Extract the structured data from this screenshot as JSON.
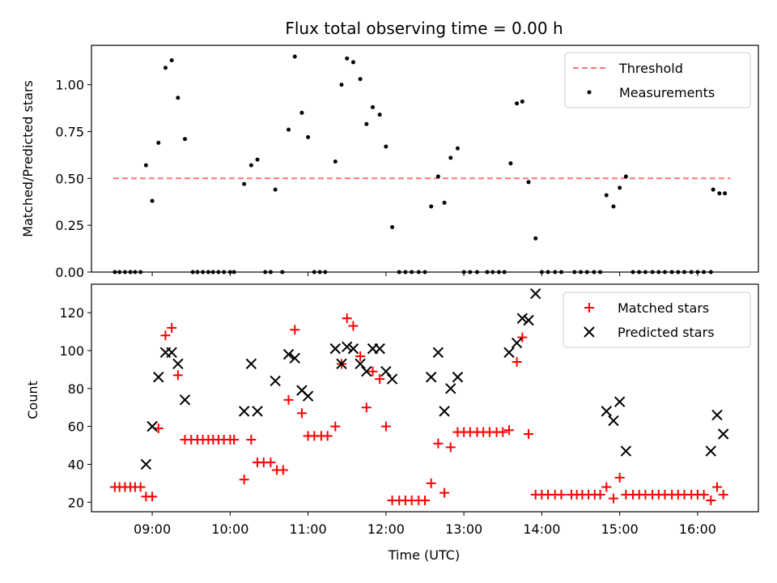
{
  "chart_data": [
    {
      "type": "scatter",
      "title": "Flux total observing time = 0.00 h",
      "xlabel": "",
      "ylabel": "Matched/Predicted stars",
      "x_unit": "hours (UTC)",
      "xlim": [
        8.22,
        16.78
      ],
      "ylim": [
        0,
        1.21
      ],
      "yticks": [
        0.0,
        0.25,
        0.5,
        0.75,
        1.0
      ],
      "ytick_labels": [
        "0.00",
        "0.25",
        "0.50",
        "0.75",
        "1.00"
      ],
      "legend_position": "top-right",
      "legend": [
        "Threshold",
        "Measurements"
      ],
      "threshold": {
        "name": "Threshold",
        "value": 0.5,
        "x_start": 8.5,
        "x_end": 16.42,
        "color": "#ff7373"
      },
      "series": [
        {
          "name": "Measurements",
          "color": "#000000",
          "points": [
            [
              8.52,
              0
            ],
            [
              8.58,
              0
            ],
            [
              8.65,
              0
            ],
            [
              8.72,
              0
            ],
            [
              8.78,
              0
            ],
            [
              8.85,
              0
            ],
            [
              8.92,
              0.57
            ],
            [
              9.0,
              0.38
            ],
            [
              9.08,
              0.69
            ],
            [
              9.17,
              1.09
            ],
            [
              9.25,
              1.13
            ],
            [
              9.33,
              0.93
            ],
            [
              9.42,
              0.71
            ],
            [
              9.52,
              0
            ],
            [
              9.58,
              0
            ],
            [
              9.65,
              0
            ],
            [
              9.72,
              0
            ],
            [
              9.78,
              0
            ],
            [
              9.85,
              0
            ],
            [
              9.92,
              0
            ],
            [
              10.0,
              0
            ],
            [
              10.05,
              0
            ],
            [
              10.18,
              0.47
            ],
            [
              10.27,
              0.57
            ],
            [
              10.35,
              0.6
            ],
            [
              10.45,
              0
            ],
            [
              10.52,
              0
            ],
            [
              10.58,
              0.44
            ],
            [
              10.67,
              0
            ],
            [
              10.75,
              0.76
            ],
            [
              10.83,
              1.15
            ],
            [
              10.92,
              0.85
            ],
            [
              11.0,
              0.72
            ],
            [
              11.08,
              0
            ],
            [
              11.15,
              0
            ],
            [
              11.22,
              0
            ],
            [
              11.35,
              0.59
            ],
            [
              11.43,
              1.0
            ],
            [
              11.5,
              1.14
            ],
            [
              11.58,
              1.12
            ],
            [
              11.67,
              1.03
            ],
            [
              11.75,
              0.79
            ],
            [
              11.83,
              0.88
            ],
            [
              11.92,
              0.84
            ],
            [
              12.0,
              0.67
            ],
            [
              12.08,
              0.24
            ],
            [
              12.17,
              0
            ],
            [
              12.25,
              0
            ],
            [
              12.33,
              0
            ],
            [
              12.42,
              0
            ],
            [
              12.5,
              0
            ],
            [
              12.58,
              0.35
            ],
            [
              12.67,
              0.51
            ],
            [
              12.75,
              0.37
            ],
            [
              12.83,
              0.61
            ],
            [
              12.92,
              0.66
            ],
            [
              13.0,
              0
            ],
            [
              13.08,
              0
            ],
            [
              13.17,
              0
            ],
            [
              13.3,
              0
            ],
            [
              13.37,
              0
            ],
            [
              13.45,
              0
            ],
            [
              13.52,
              0
            ],
            [
              13.6,
              0.58
            ],
            [
              13.68,
              0.9
            ],
            [
              13.75,
              0.91
            ],
            [
              13.83,
              0.48
            ],
            [
              13.92,
              0.18
            ],
            [
              14.0,
              0
            ],
            [
              14.08,
              0
            ],
            [
              14.17,
              0
            ],
            [
              14.25,
              0
            ],
            [
              14.42,
              0
            ],
            [
              14.5,
              0
            ],
            [
              14.58,
              0
            ],
            [
              14.67,
              0
            ],
            [
              14.75,
              0
            ],
            [
              14.83,
              0.41
            ],
            [
              14.92,
              0.35
            ],
            [
              15.0,
              0.45
            ],
            [
              15.08,
              0.51
            ],
            [
              15.17,
              0
            ],
            [
              15.25,
              0
            ],
            [
              15.33,
              0
            ],
            [
              15.42,
              0
            ],
            [
              15.5,
              0
            ],
            [
              15.58,
              0
            ],
            [
              15.67,
              0
            ],
            [
              15.75,
              0
            ],
            [
              15.83,
              0
            ],
            [
              15.92,
              0
            ],
            [
              16.0,
              0
            ],
            [
              16.08,
              0
            ],
            [
              16.17,
              0
            ],
            [
              16.2,
              0.44
            ],
            [
              16.28,
              0.42
            ],
            [
              16.35,
              0.42
            ]
          ]
        }
      ]
    },
    {
      "type": "scatter",
      "title": "",
      "xlabel": "Time (UTC)",
      "ylabel": "Count",
      "x_unit": "hours (UTC)",
      "xlim": [
        8.22,
        16.78
      ],
      "ylim": [
        15,
        135
      ],
      "xticks": [
        9,
        10,
        11,
        12,
        13,
        14,
        15,
        16
      ],
      "xtick_labels": [
        "09:00",
        "10:00",
        "11:00",
        "12:00",
        "13:00",
        "14:00",
        "15:00",
        "16:00"
      ],
      "yticks": [
        20,
        40,
        60,
        80,
        100,
        120
      ],
      "ytick_labels": [
        "20",
        "40",
        "60",
        "80",
        "100",
        "120"
      ],
      "legend_position": "top-right",
      "legend": [
        "Matched stars",
        "Predicted stars"
      ],
      "series": [
        {
          "name": "Matched stars",
          "marker": "+",
          "color": "#ff0000",
          "points": [
            [
              8.52,
              28
            ],
            [
              8.58,
              28
            ],
            [
              8.65,
              28
            ],
            [
              8.72,
              28
            ],
            [
              8.78,
              28
            ],
            [
              8.85,
              28
            ],
            [
              8.92,
              23
            ],
            [
              9.0,
              23
            ],
            [
              9.08,
              59
            ],
            [
              9.17,
              108
            ],
            [
              9.25,
              112
            ],
            [
              9.33,
              87
            ],
            [
              9.42,
              53
            ],
            [
              9.5,
              53
            ],
            [
              9.58,
              53
            ],
            [
              9.65,
              53
            ],
            [
              9.72,
              53
            ],
            [
              9.78,
              53
            ],
            [
              9.85,
              53
            ],
            [
              9.92,
              53
            ],
            [
              10.0,
              53
            ],
            [
              10.05,
              53
            ],
            [
              10.18,
              32
            ],
            [
              10.27,
              53
            ],
            [
              10.35,
              41
            ],
            [
              10.43,
              41
            ],
            [
              10.52,
              41
            ],
            [
              10.6,
              37
            ],
            [
              10.68,
              37
            ],
            [
              10.75,
              74
            ],
            [
              10.83,
              111
            ],
            [
              10.92,
              67
            ],
            [
              11.0,
              55
            ],
            [
              11.08,
              55
            ],
            [
              11.17,
              55
            ],
            [
              11.25,
              55
            ],
            [
              11.35,
              60
            ],
            [
              11.43,
              93
            ],
            [
              11.5,
              117
            ],
            [
              11.58,
              113
            ],
            [
              11.67,
              97
            ],
            [
              11.75,
              70
            ],
            [
              11.83,
              89
            ],
            [
              11.92,
              85
            ],
            [
              12.0,
              60
            ],
            [
              12.08,
              21
            ],
            [
              12.17,
              21
            ],
            [
              12.25,
              21
            ],
            [
              12.33,
              21
            ],
            [
              12.42,
              21
            ],
            [
              12.5,
              21
            ],
            [
              12.58,
              30
            ],
            [
              12.67,
              51
            ],
            [
              12.75,
              25
            ],
            [
              12.83,
              49
            ],
            [
              12.92,
              57
            ],
            [
              13.0,
              57
            ],
            [
              13.08,
              57
            ],
            [
              13.17,
              57
            ],
            [
              13.25,
              57
            ],
            [
              13.33,
              57
            ],
            [
              13.42,
              57
            ],
            [
              13.5,
              57
            ],
            [
              13.58,
              58
            ],
            [
              13.68,
              94
            ],
            [
              13.75,
              107
            ],
            [
              13.83,
              56
            ],
            [
              13.92,
              24
            ],
            [
              14.0,
              24
            ],
            [
              14.08,
              24
            ],
            [
              14.17,
              24
            ],
            [
              14.25,
              24
            ],
            [
              14.38,
              24
            ],
            [
              14.45,
              24
            ],
            [
              14.52,
              24
            ],
            [
              14.6,
              24
            ],
            [
              14.68,
              24
            ],
            [
              14.75,
              24
            ],
            [
              14.83,
              28
            ],
            [
              14.92,
              22
            ],
            [
              15.0,
              33
            ],
            [
              15.08,
              24
            ],
            [
              15.17,
              24
            ],
            [
              15.25,
              24
            ],
            [
              15.33,
              24
            ],
            [
              15.42,
              24
            ],
            [
              15.5,
              24
            ],
            [
              15.58,
              24
            ],
            [
              15.67,
              24
            ],
            [
              15.75,
              24
            ],
            [
              15.83,
              24
            ],
            [
              15.92,
              24
            ],
            [
              16.0,
              24
            ],
            [
              16.08,
              24
            ],
            [
              16.17,
              21
            ],
            [
              16.25,
              28
            ],
            [
              16.33,
              24
            ]
          ]
        },
        {
          "name": "Predicted stars",
          "marker": "x",
          "color": "#000000",
          "points": [
            [
              8.92,
              40
            ],
            [
              9.0,
              60
            ],
            [
              9.08,
              86
            ],
            [
              9.17,
              99
            ],
            [
              9.25,
              99
            ],
            [
              9.33,
              93
            ],
            [
              9.42,
              74
            ],
            [
              10.18,
              68
            ],
            [
              10.27,
              93
            ],
            [
              10.35,
              68
            ],
            [
              10.58,
              84
            ],
            [
              10.75,
              98
            ],
            [
              10.83,
              96
            ],
            [
              10.92,
              79
            ],
            [
              11.0,
              76
            ],
            [
              11.35,
              101
            ],
            [
              11.43,
              93
            ],
            [
              11.5,
              102
            ],
            [
              11.58,
              101
            ],
            [
              11.67,
              93
            ],
            [
              11.75,
              89
            ],
            [
              11.83,
              101
            ],
            [
              11.92,
              101
            ],
            [
              12.0,
              89
            ],
            [
              12.08,
              85
            ],
            [
              12.58,
              86
            ],
            [
              12.67,
              99
            ],
            [
              12.75,
              68
            ],
            [
              12.83,
              80
            ],
            [
              12.92,
              86
            ],
            [
              13.58,
              99
            ],
            [
              13.68,
              104
            ],
            [
              13.75,
              117
            ],
            [
              13.83,
              116
            ],
            [
              13.92,
              130
            ],
            [
              14.83,
              68
            ],
            [
              14.92,
              63
            ],
            [
              15.0,
              73
            ],
            [
              15.08,
              47
            ],
            [
              16.17,
              47
            ],
            [
              16.25,
              66
            ],
            [
              16.33,
              56
            ]
          ]
        }
      ]
    }
  ]
}
